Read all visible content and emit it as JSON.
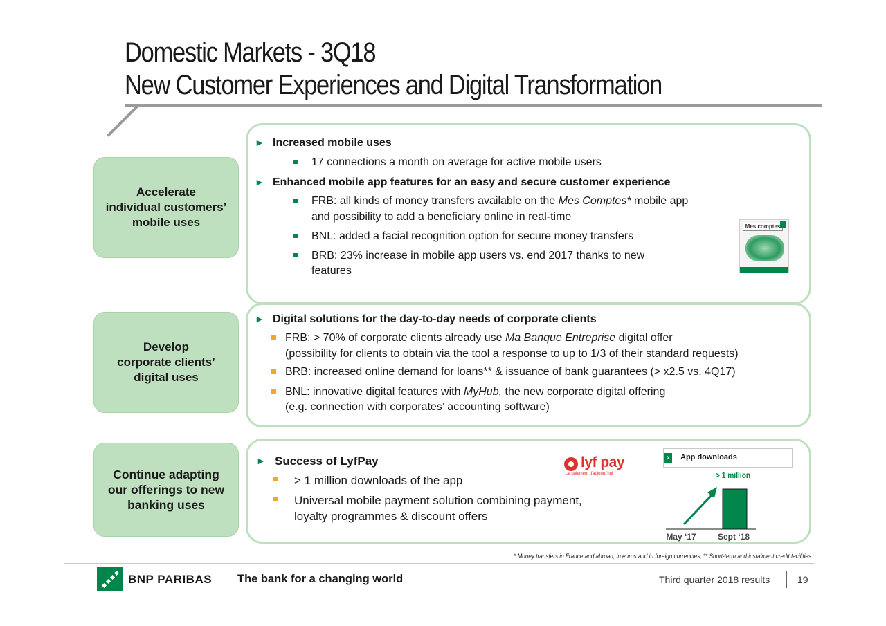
{
  "header": {
    "title_line1": "Domestic Markets - 3Q18",
    "title_line2": "New Customer Experiences and Digital Transformation"
  },
  "sections": [
    {
      "label": "Accelerate\nindividual customers’\nmobile uses",
      "heading1": "Increased mobile uses",
      "bullet1": "17 connections a month on average for active mobile users",
      "heading2": "Enhanced mobile app features for an easy and secure customer experience",
      "frb_a": "FRB: all kinds of money transfers available on the ",
      "frb_italic": "Mes Comptes*",
      "frb_b": " mobile app",
      "frb_cont": "and possibility to add a beneficiary online in real-time",
      "bnl": "BNL: added a facial recognition option for secure money transfers",
      "brb": "BRB: 23% increase in mobile app users vs. end 2017 thanks to new",
      "brb_cont": "features",
      "app_screen_title": "Mes comptes"
    },
    {
      "label": "Develop\ncorporate clients’\ndigital uses",
      "heading": "Digital solutions for the day-to-day needs of corporate clients",
      "frb_a": "FRB: > 70% of corporate clients already use ",
      "frb_italic": "Ma Banque Entreprise",
      "frb_b": " digital offer",
      "frb_cont": "(possibility for clients to obtain via the tool a response to up to 1/3 of their standard requests)",
      "brb": "BRB: increased online demand for loans** & issuance of bank guarantees (> x2.5 vs. 4Q17)",
      "bnl_a": "BNL: innovative digital features with ",
      "bnl_italic": "MyHub,",
      "bnl_b": " the new corporate digital offering",
      "bnl_cont": "(e.g. connection with corporates’ accounting software)"
    },
    {
      "label": "Continue adapting\nour offerings to new\nbanking uses",
      "heading": "Success of LyfPay",
      "bullet1": "> 1 million downloads of the app",
      "bullet2": "Universal mobile payment solution combining payment,",
      "bullet2_cont": "loyalty programmes & discount offers",
      "logo_text": "lyf pay",
      "logo_sub": "Le paiement d'aujourd'hui"
    }
  ],
  "chart_data": {
    "type": "bar",
    "title": "App downloads",
    "categories": [
      "May ‘17",
      "Sept ‘18"
    ],
    "annotation": "> 1 million",
    "colors": {
      "bar": "#00864a"
    }
  },
  "footnote": "* Money transfers in France and abroad, in euros and in foreign currencies; ** Short-term and instalment credit facilities",
  "footer": {
    "brand": "BNP PARIBAS",
    "tagline": "The bank for a changing world",
    "results": "Third quarter 2018 results",
    "page": "19"
  },
  "colors": {
    "accent": "#00864a",
    "label_bg": "#bfe0bf",
    "bullet_orange": "#f5a623"
  }
}
